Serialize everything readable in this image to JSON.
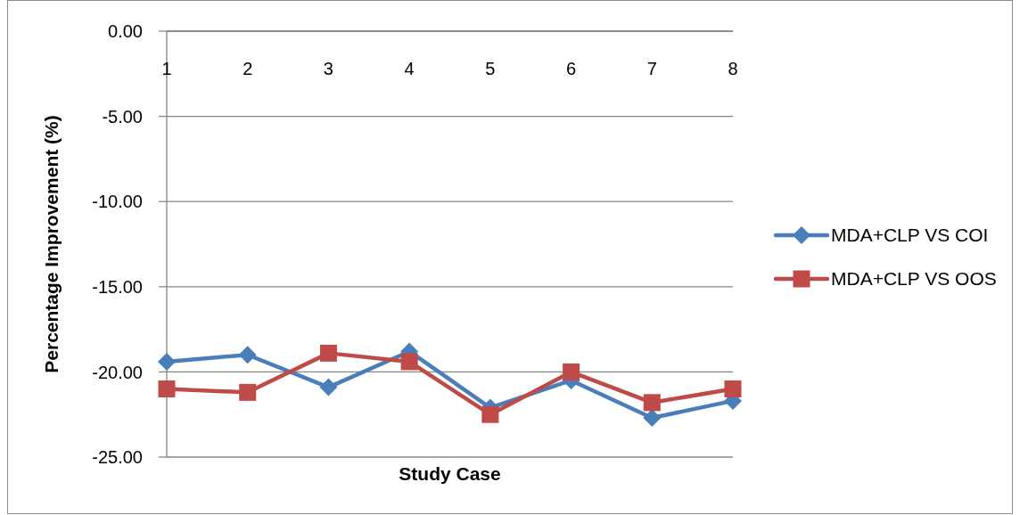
{
  "chart_data": {
    "type": "line",
    "xlabel": "Study Case",
    "ylabel": "Percentage Improvement (%)",
    "categories": [
      "1",
      "2",
      "3",
      "4",
      "5",
      "6",
      "7",
      "8"
    ],
    "series": [
      {
        "name": "MDA+CLP VS COI",
        "color": "#4a7ebb",
        "marker": "diamond",
        "values": [
          -19.4,
          -19.0,
          -20.9,
          -18.8,
          -22.1,
          -20.5,
          -22.7,
          -21.7
        ]
      },
      {
        "name": "MDA+CLP VS OOS",
        "color": "#be4b48",
        "marker": "square",
        "values": [
          -21.0,
          -21.2,
          -18.9,
          -19.4,
          -22.5,
          -20.0,
          -21.8,
          -21.0
        ]
      }
    ],
    "ylim": [
      -25,
      0
    ],
    "yticks": [
      {
        "value": 0,
        "label": "0.00"
      },
      {
        "value": -5,
        "label": "-5.00"
      },
      {
        "value": -10,
        "label": "-10.00"
      },
      {
        "value": -15,
        "label": "-15.00"
      },
      {
        "value": -20,
        "label": "-20.00"
      },
      {
        "value": -25,
        "label": "-25.00"
      }
    ],
    "grid": "y",
    "legend": "right",
    "line_style": "solid"
  }
}
